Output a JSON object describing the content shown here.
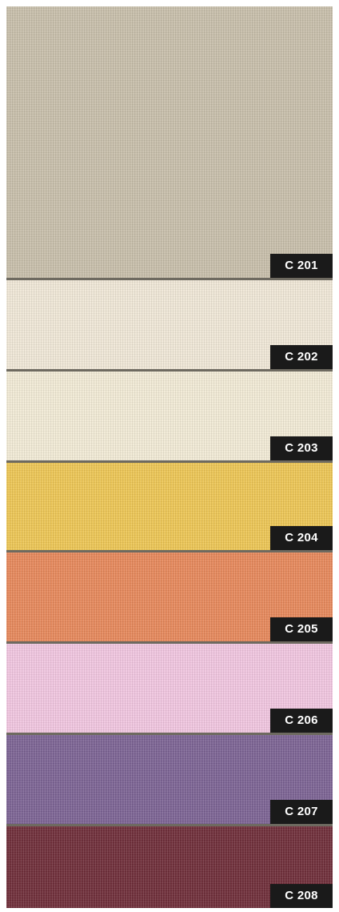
{
  "swatches": [
    {
      "code": "C 201",
      "color": "#c7beaa"
    },
    {
      "code": "C 202",
      "color": "#efe7d6"
    },
    {
      "code": "C 203",
      "color": "#f1ead5"
    },
    {
      "code": "C 204",
      "color": "#ecc553"
    },
    {
      "code": "C 205",
      "color": "#e6875a"
    },
    {
      "code": "C 206",
      "color": "#f0c5df"
    },
    {
      "code": "C 207",
      "color": "#7b6293"
    },
    {
      "code": "C 208",
      "color": "#6e2c38"
    }
  ]
}
